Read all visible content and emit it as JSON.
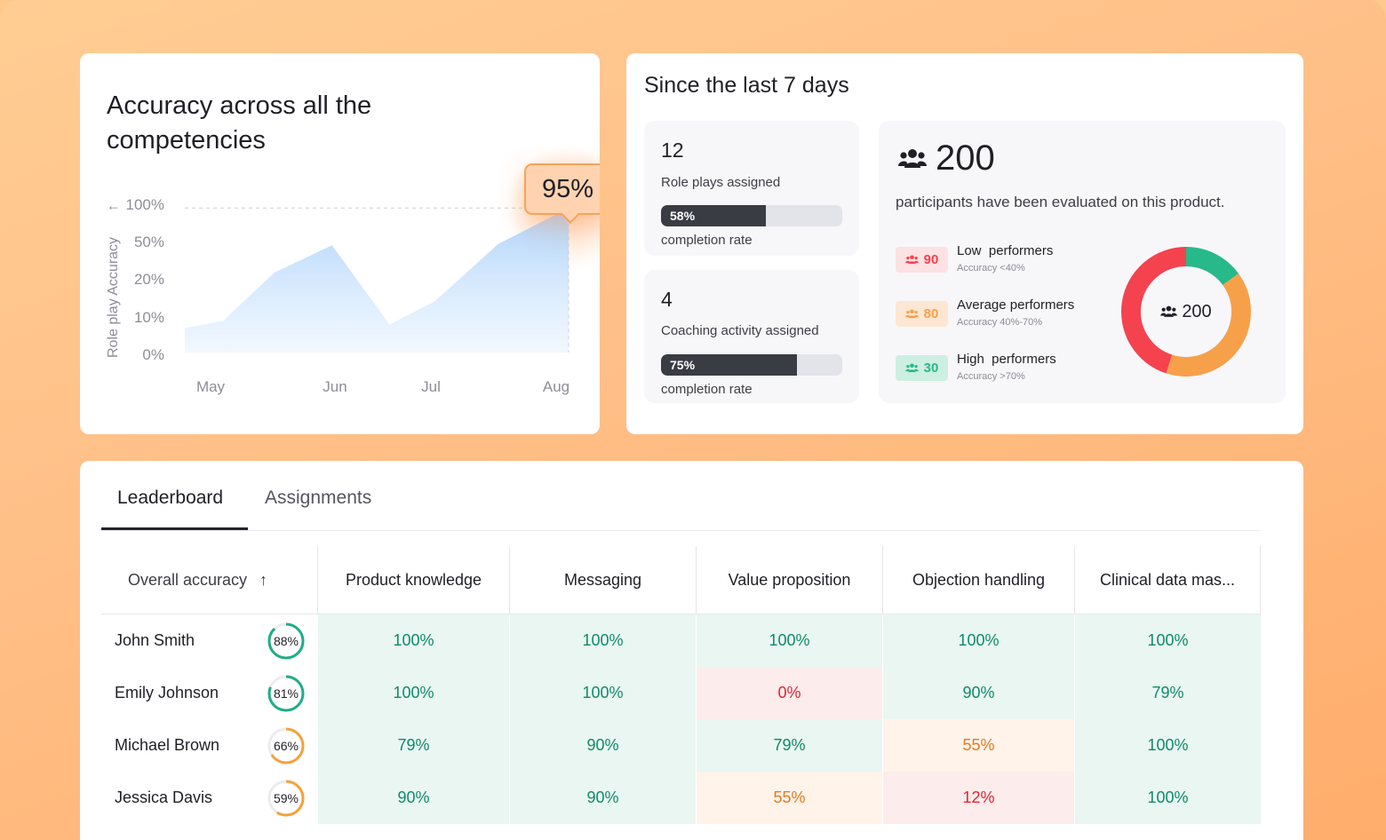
{
  "chart_card": {
    "title": "Accuracy across all the competencies",
    "callout": "95%",
    "y_axis_title": "Role play Accuracy",
    "y_axis_arrow": "↑"
  },
  "chart_data": {
    "type": "area",
    "title": "Accuracy across all the competencies",
    "ylabel": "Role play Accuracy",
    "xlabel": "",
    "y_ticks": [
      "100%",
      "50%",
      "20%",
      "10%",
      "0%"
    ],
    "x_ticks": [
      "May",
      "Jun",
      "Jul",
      "Aug"
    ],
    "series": [
      {
        "name": "Accuracy",
        "points": [
          {
            "x": 0.0,
            "y": 7
          },
          {
            "x": 0.3,
            "y": 9
          },
          {
            "x": 0.7,
            "y": 25
          },
          {
            "x": 1.15,
            "y": 47
          },
          {
            "x": 1.6,
            "y": 8
          },
          {
            "x": 1.95,
            "y": 14
          },
          {
            "x": 2.45,
            "y": 48
          },
          {
            "x": 3.0,
            "y": 95
          }
        ]
      }
    ],
    "highlight": {
      "label": "95%",
      "x": "Aug",
      "y": 95
    },
    "reference_line": {
      "style": "dashed",
      "value": 95
    }
  },
  "stats": {
    "heading": "Since the last 7 days",
    "role_plays": {
      "count": "12",
      "label": "Role plays assigned",
      "rate": "58%",
      "rate_value": 0.58,
      "rate_label": "completion rate"
    },
    "coaching": {
      "count": "4",
      "label": "Coaching activity assigned",
      "rate": "75%",
      "rate_value": 0.75,
      "rate_label": "completion rate"
    },
    "participants": {
      "total": "200",
      "description": "participants have been evaluated on this product.",
      "donut_center": "200",
      "groups": [
        {
          "count": "90",
          "title": "Low  performers",
          "sub": "Accuracy <40%",
          "color": "#f5424f",
          "bg": "#fde1e3",
          "value": 90
        },
        {
          "count": "80",
          "title": "Average performers",
          "sub": "Accuracy 40%-70%",
          "color": "#f7a04a",
          "bg": "#fde6d2",
          "value": 80
        },
        {
          "count": "30",
          "title": "High  performers",
          "sub": "Accuracy >70%",
          "color": "#27b989",
          "bg": "#cdefe2",
          "value": 30
        }
      ]
    }
  },
  "tabs": {
    "leaderboard": "Leaderboard",
    "assignments": "Assignments"
  },
  "table": {
    "headers": [
      "Overall accuracy",
      "Product knowledge",
      "Messaging",
      "Value proposition",
      "Objection handling",
      "Clinical data mas..."
    ],
    "sort_icon": "↑",
    "rows": [
      {
        "name": "John Smith",
        "overall": "88%",
        "overall_value": 0.88,
        "cells": [
          "100%",
          "100%",
          "100%",
          "100%",
          "100%"
        ]
      },
      {
        "name": "Emily Johnson",
        "overall": "81%",
        "overall_value": 0.81,
        "cells": [
          "100%",
          "100%",
          "0%",
          "90%",
          "79%"
        ]
      },
      {
        "name": "Michael Brown",
        "overall": "66%",
        "overall_value": 0.66,
        "cells": [
          "79%",
          "90%",
          "79%",
          "55%",
          "100%"
        ]
      },
      {
        "name": "Jessica Davis",
        "overall": "59%",
        "overall_value": 0.59,
        "cells": [
          "90%",
          "90%",
          "55%",
          "12%",
          "100%"
        ]
      }
    ]
  },
  "colors": {
    "good": "#0f8a68",
    "bad": "#e02435",
    "mid": "#e77a1c",
    "ring_good": "#1fae86",
    "ring_mid": "#f3a33b"
  }
}
